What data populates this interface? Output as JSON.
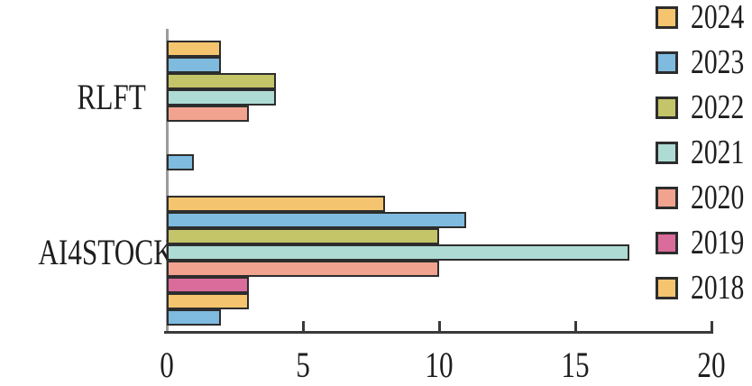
{
  "chart_data": {
    "type": "bar",
    "orientation": "horizontal",
    "title": "",
    "xlabel": "",
    "ylabel": "",
    "categories": [
      "RLFT",
      "AI4STOCK"
    ],
    "x_axis": {
      "ticks": [
        0,
        5,
        10,
        15,
        20
      ],
      "range": [
        0,
        20
      ],
      "grid": false
    },
    "legend": {
      "position": "right-outside",
      "entries": [
        "2024",
        "2023",
        "2022",
        "2021",
        "2020",
        "2019",
        "2018"
      ]
    },
    "series": [
      {
        "name": "2024",
        "color": "#F4C46E",
        "values": [
          2,
          8
        ]
      },
      {
        "name": "2023",
        "color": "#7FBADF",
        "values": [
          2,
          11
        ]
      },
      {
        "name": "2022",
        "color": "#C4C468",
        "values": [
          4,
          10
        ]
      },
      {
        "name": "2021",
        "color": "#AEDBD3",
        "values": [
          4,
          17
        ]
      },
      {
        "name": "2020",
        "color": "#F1A38F",
        "values": [
          3,
          10
        ]
      },
      {
        "name": "2019",
        "color": "#DA6C9B",
        "values": [
          0,
          3
        ]
      },
      {
        "name": "2018",
        "color": "#F4C46E",
        "values": [
          0,
          3
        ]
      },
      {
        "name": "",
        "color": "#7FBADF",
        "values": [
          1,
          2
        ]
      }
    ],
    "colors": {
      "bar_border": "#2D2D2D",
      "y_axis_line": "#9B9B9B",
      "x_axis_line": "#3A3A3A",
      "text": "#1E1E1E",
      "background": "#FFFFFF"
    }
  }
}
